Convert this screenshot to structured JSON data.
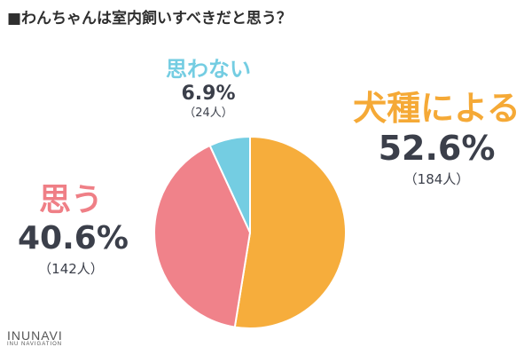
{
  "chart_data": {
    "type": "pie",
    "title": "■わんちゃんは室内飼いすべきだと思う？",
    "slices": [
      {
        "label": "犬種による",
        "value": 52.6,
        "value_label": "52.6%",
        "count_label": "（184人）",
        "color": "#f6ad3c"
      },
      {
        "label": "思う",
        "value": 40.6,
        "value_label": "40.6%",
        "count_label": "（142人）",
        "color": "#f0828a"
      },
      {
        "label": "思わない",
        "value": 6.9,
        "value_label": "6.9%",
        "count_label": "（24人）",
        "color": "#74cde2"
      }
    ],
    "start_angle": "12 o'clock",
    "direction": "clockwise"
  },
  "logo": {
    "main": "INUNAVI",
    "sub": "INU NAVIGATION"
  }
}
